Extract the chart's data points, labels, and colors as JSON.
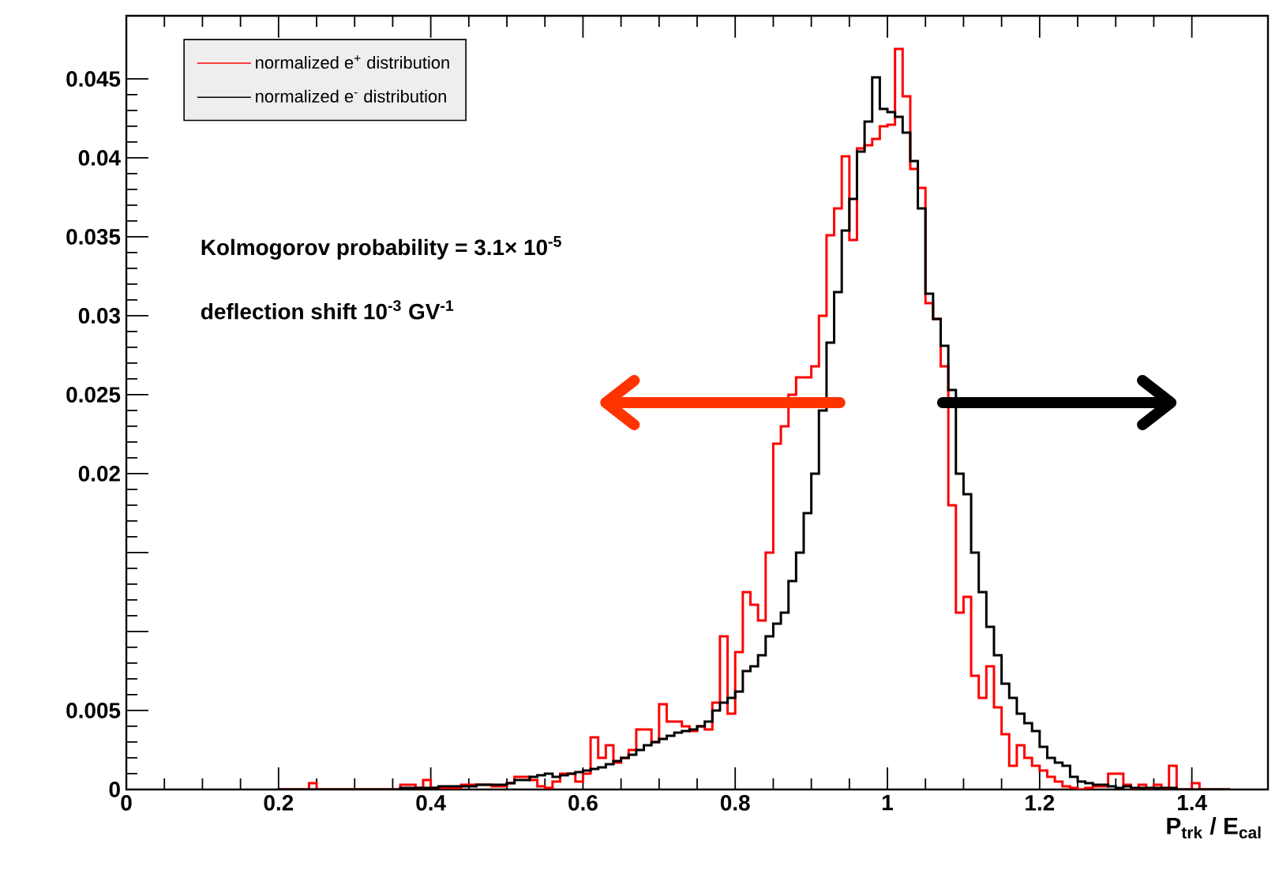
{
  "chart_data": {
    "type": "histogram",
    "xlabel": "P$_{trk}$ / E$_{cal}$",
    "xlim": [
      0,
      1.5
    ],
    "xticks": [
      0,
      0.2,
      0.4,
      0.6,
      0.8,
      1,
      1.2,
      1.4
    ],
    "ylim": [
      0,
      0.049
    ],
    "yticks": [
      0,
      0.005,
      {
        "value": 0.01,
        "label": null
      },
      {
        "value": 0.015,
        "label": null
      },
      0.02,
      0.025,
      0.03,
      0.035,
      0.04,
      0.045
    ],
    "legend": "top left",
    "annotations": [
      "Kolmogorov probability = 3.1× 10$^{-5}$",
      "deflection shift 10$^{-3}$ GV$^{-1}$"
    ],
    "bins": [
      0.2,
      0.21,
      0.22,
      0.23,
      0.24,
      0.25,
      0.26,
      0.27,
      0.28,
      0.29,
      0.3,
      0.31,
      0.32,
      0.33,
      0.34,
      0.35,
      0.36,
      0.37,
      0.38,
      0.39,
      0.4,
      0.41,
      0.42,
      0.43,
      0.44,
      0.45,
      0.46,
      0.47,
      0.48,
      0.49,
      0.5,
      0.51,
      0.52,
      0.53,
      0.54,
      0.55,
      0.56,
      0.57,
      0.58,
      0.59,
      0.6,
      0.61,
      0.62,
      0.63,
      0.64,
      0.65,
      0.66,
      0.67,
      0.68,
      0.69,
      0.7,
      0.71,
      0.72,
      0.73,
      0.74,
      0.75,
      0.76,
      0.77,
      0.78,
      0.79,
      0.8,
      0.81,
      0.82,
      0.83,
      0.84,
      0.85,
      0.86,
      0.87,
      0.88,
      0.89,
      0.9,
      0.91,
      0.92,
      0.93,
      0.94,
      0.95,
      0.96,
      0.97,
      0.98,
      0.99,
      1.0,
      1.01,
      1.02,
      1.03,
      1.04,
      1.05,
      1.06,
      1.07,
      1.08,
      1.09,
      1.1,
      1.11,
      1.12,
      1.13,
      1.14,
      1.15,
      1.16,
      1.17,
      1.18,
      1.19,
      1.2,
      1.21,
      1.22,
      1.23,
      1.24,
      1.25,
      1.26,
      1.27,
      1.28,
      1.29,
      1.3,
      1.31,
      1.32,
      1.33,
      1.34,
      1.35,
      1.36,
      1.37,
      1.38,
      1.39,
      1.4,
      1.41,
      1.42,
      1.43,
      1.44,
      1.45
    ],
    "series": [
      {
        "name": "normalized e$^{+}$ distribution",
        "color": "#ff0000",
        "values": [
          0,
          0,
          0,
          0,
          0.0004,
          0,
          0,
          0,
          0,
          0,
          0,
          0,
          0,
          0,
          0,
          0,
          0.0003,
          0.0003,
          0.0001,
          0.0006,
          0.0001,
          0.0001,
          0.0001,
          0.0001,
          0.0003,
          0.0003,
          0.0003,
          0.0003,
          0.0002,
          0.0002,
          0.0004,
          0.0008,
          0.0008,
          0.0006,
          0.0002,
          0.0001,
          0.0005,
          0.001,
          0.001,
          0.0005,
          0.001,
          0.0033,
          0.002,
          0.0028,
          0.0017,
          0.002,
          0.0025,
          0.0038,
          0.0038,
          0.003,
          0.0054,
          0.0043,
          0.0043,
          0.004,
          0.0037,
          0.004,
          0.0038,
          0.0055,
          0.0097,
          0.0048,
          0.0087,
          0.0125,
          0.0117,
          0.0107,
          0.015,
          0.0219,
          0.023,
          0.025,
          0.0261,
          0.0261,
          0.0268,
          0.03,
          0.0351,
          0.0368,
          0.0401,
          0.0348,
          0.0406,
          0.0408,
          0.0412,
          0.042,
          0.0421,
          0.0469,
          0.0439,
          0.0393,
          0.0381,
          0.0308,
          0.0298,
          0.0268,
          0.018,
          0.0112,
          0.0122,
          0.0072,
          0.0058,
          0.0078,
          0.0052,
          0.0035,
          0.0015,
          0.0028,
          0.002,
          0.0015,
          0.0012,
          0.0008,
          0.0005,
          0.0002,
          0.0001,
          0,
          0.0001,
          0.0002,
          0.0002,
          0.001,
          0.001,
          0.0003,
          0,
          0.0003,
          0,
          0.0003,
          0,
          0.0015,
          0,
          0,
          0.0004,
          0,
          0,
          0,
          0
        ]
      },
      {
        "name": "normalized e$^{-}$ distribution",
        "color": "#000000",
        "values": [
          0,
          0,
          0,
          0,
          0,
          0,
          0,
          0,
          0,
          0,
          0,
          0,
          0,
          0,
          0,
          0,
          0.0001,
          0.0001,
          0.0001,
          0.0001,
          0.0001,
          0.0002,
          0.0002,
          0.0002,
          0.0002,
          0.0002,
          0.0003,
          0.0003,
          0.0003,
          0.0003,
          0.0004,
          0.0006,
          0.0006,
          0.0008,
          0.0009,
          0.001,
          0.0008,
          0.0009,
          0.001,
          0.0011,
          0.0012,
          0.0013,
          0.0014,
          0.0016,
          0.0018,
          0.002,
          0.0022,
          0.0025,
          0.0028,
          0.003,
          0.0032,
          0.0034,
          0.0036,
          0.0037,
          0.0038,
          0.004,
          0.0043,
          0.005,
          0.0055,
          0.0058,
          0.0062,
          0.0075,
          0.0078,
          0.0085,
          0.0097,
          0.0105,
          0.0112,
          0.0132,
          0.015,
          0.0175,
          0.02,
          0.024,
          0.0283,
          0.0315,
          0.0354,
          0.0374,
          0.0404,
          0.0423,
          0.0451,
          0.0431,
          0.0429,
          0.0426,
          0.0416,
          0.0398,
          0.0368,
          0.0314,
          0.0298,
          0.0281,
          0.0253,
          0.02,
          0.0187,
          0.015,
          0.0125,
          0.0103,
          0.0085,
          0.0067,
          0.0058,
          0.0048,
          0.0042,
          0.0037,
          0.0027,
          0.002,
          0.0017,
          0.0015,
          0.0008,
          0.0005,
          0.0004,
          0.0003,
          0.0003,
          0.0002,
          0.0001,
          0.0002,
          0.0001,
          0.0001,
          0.0001,
          0.0001,
          0.0001,
          0.0001,
          0,
          0,
          0,
          0,
          0,
          0,
          0
        ]
      }
    ]
  }
}
